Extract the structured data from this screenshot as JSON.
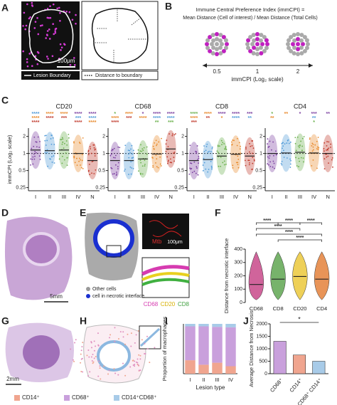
{
  "panel_labels": [
    "A",
    "B",
    "C",
    "D",
    "E",
    "F",
    "G",
    "H",
    "I",
    "J"
  ],
  "panel_a": {
    "scale_bar": "100μm",
    "legend": [
      "Lesion Boundary",
      "Distance to boundary"
    ]
  },
  "panel_b": {
    "formula_title": "Immune Central Preference Index (immCPI) =",
    "formula": "Mean Distance (Cell of interest) / Mean Distance (Total Cells)",
    "axis_ticks": [
      "0.5",
      "1",
      "2"
    ],
    "axis_label": "immCPI (Log₂ scale)"
  },
  "panel_d": {
    "scale_bar": "5mm"
  },
  "panel_e": {
    "legend": [
      "Other cells",
      "cell in necrotic interface"
    ],
    "inset_label": "Mtb",
    "scale_bar": "100μm",
    "channels": [
      "CD68",
      "CD20",
      "CD8"
    ]
  },
  "panel_g": {
    "scale_bar": "2mm"
  },
  "chart_data": [
    {
      "type": "dot_violin",
      "title": "CD20",
      "categories": [
        "I",
        "II",
        "III",
        "IV",
        "N"
      ],
      "values": [
        1.15,
        1.12,
        1.15,
        1.0,
        0.75
      ],
      "colors": [
        "#7b3fa0",
        "#4f9ad8",
        "#6ab04c",
        "#e8892b",
        "#c0392b"
      ],
      "ylim": [
        0.22,
        2.8
      ],
      "yticks": [
        0.25,
        0.5,
        1,
        2
      ],
      "log_scale": true,
      "reference_line": 1,
      "ylabel": "immCPI (Log₂ scale)",
      "stars": [
        [
          {
            "text": "****",
            "color": "#4f9ad8"
          },
          {
            "text": "****",
            "color": "#e8892b"
          },
          {
            "text": "****",
            "color": "#c0392b"
          }
        ],
        [
          {
            "text": "****",
            "color": "#e8892b"
          },
          {
            "text": "****",
            "color": "#c0392b"
          }
        ],
        [
          {
            "text": "****",
            "color": "#e8892b"
          },
          {
            "text": "***",
            "color": "#c0392b"
          }
        ],
        [
          {
            "text": "****",
            "color": "#7b3fa0"
          },
          {
            "text": "***",
            "color": "#4f9ad8"
          },
          {
            "text": "****",
            "color": "#c0392b"
          }
        ],
        [
          {
            "text": "****",
            "color": "#7b3fa0"
          },
          {
            "text": "****",
            "color": "#4f9ad8"
          },
          {
            "text": "****",
            "color": "#e8892b"
          }
        ]
      ]
    },
    {
      "type": "dot_violin",
      "title": "CD68",
      "categories": [
        "I",
        "II",
        "III",
        "IV",
        "N"
      ],
      "values": [
        0.75,
        0.75,
        0.8,
        0.98,
        1.2
      ],
      "colors": [
        "#7b3fa0",
        "#4f9ad8",
        "#6ab04c",
        "#e8892b",
        "#c0392b"
      ],
      "ylim": [
        0.22,
        2.8
      ],
      "yticks": [
        0.25,
        0.5,
        1,
        2
      ],
      "log_scale": true,
      "reference_line": 1,
      "stars": [
        [
          {
            "text": "*",
            "color": "#6ab04c"
          },
          {
            "text": "****",
            "color": "#e8892b"
          },
          {
            "text": "****",
            "color": "#c0392b"
          }
        ],
        [
          {
            "text": "****",
            "color": "#e8892b"
          },
          {
            "text": "***",
            "color": "#c0392b"
          }
        ],
        [
          {
            "text": "*",
            "color": "#7b3fa0"
          },
          {
            "text": "****",
            "color": "#e8892b"
          }
        ],
        [
          {
            "text": "****",
            "color": "#7b3fa0"
          },
          {
            "text": "****",
            "color": "#4f9ad8"
          },
          {
            "text": "**",
            "color": "#6ab04c"
          }
        ],
        [
          {
            "text": "****",
            "color": "#7b3fa0"
          },
          {
            "text": "****",
            "color": "#4f9ad8"
          },
          {
            "text": "***",
            "color": "#6ab04c"
          }
        ]
      ]
    },
    {
      "type": "dot_violin",
      "title": "CD8",
      "categories": [
        "I",
        "II",
        "III",
        "IV",
        "N"
      ],
      "values": [
        0.75,
        0.78,
        0.9,
        0.97,
        0.9
      ],
      "colors": [
        "#7b3fa0",
        "#4f9ad8",
        "#6ab04c",
        "#e8892b",
        "#c0392b"
      ],
      "ylim": [
        0.22,
        2.8
      ],
      "yticks": [
        0.25,
        0.5,
        1,
        2
      ],
      "log_scale": true,
      "reference_line": 1,
      "stars": [
        [
          {
            "text": "****",
            "color": "#6ab04c"
          },
          {
            "text": "****",
            "color": "#e8892b"
          },
          {
            "text": "***",
            "color": "#c0392b"
          }
        ],
        [
          {
            "text": "****",
            "color": "#e8892b"
          },
          {
            "text": "**",
            "color": "#c0392b"
          }
        ],
        [
          {
            "text": "****",
            "color": "#7b3fa0"
          },
          {
            "text": "*",
            "color": "#e8892b"
          }
        ],
        [
          {
            "text": "****",
            "color": "#7b3fa0"
          },
          {
            "text": "****",
            "color": "#4f9ad8"
          }
        ],
        [
          {
            "text": "***",
            "color": "#7b3fa0"
          },
          {
            "text": "**",
            "color": "#4f9ad8"
          }
        ]
      ]
    },
    {
      "type": "dot_violin",
      "title": "CD4",
      "categories": [
        "I",
        "II",
        "III",
        "IV",
        "N"
      ],
      "values": [
        1.0,
        1.02,
        1.05,
        1.02,
        1.0
      ],
      "colors": [
        "#7b3fa0",
        "#4f9ad8",
        "#6ab04c",
        "#e8892b",
        "#c0392b"
      ],
      "ylim": [
        0.22,
        2.8
      ],
      "yticks": [
        0.25,
        0.5,
        1,
        2
      ],
      "log_scale": true,
      "reference_line": 1,
      "stars": [
        [
          {
            "text": "*",
            "color": "#6ab04c"
          },
          {
            "text": "**",
            "color": "#e8892b"
          }
        ],
        [
          {
            "text": "**",
            "color": "#e8892b"
          }
        ],
        [
          {
            "text": "*",
            "color": "#7b3fa0"
          }
        ],
        [
          {
            "text": "***",
            "color": "#7b3fa0"
          },
          {
            "text": "**",
            "color": "#4f9ad8"
          },
          {
            "text": "*",
            "color": "#6ab04c"
          }
        ],
        [
          {
            "text": "**",
            "color": "#7b3fa0"
          }
        ]
      ]
    },
    {
      "type": "violin",
      "categories": [
        "CD68",
        "CD8",
        "CD20",
        "CD4"
      ],
      "values": [
        135,
        175,
        195,
        175
      ],
      "colors": [
        "#c0307a",
        "#4a9a3a",
        "#e8c020",
        "#e07020"
      ],
      "ylim": [
        0,
        400
      ],
      "yticks": [
        0,
        100,
        200,
        300,
        400
      ],
      "ylabel": "Distance from necrotic interface",
      "significance": [
        "****",
        "****",
        "****",
        "****",
        "****",
        "****"
      ]
    },
    {
      "type": "stacked_bar",
      "categories": [
        "I",
        "II",
        "III",
        "IV"
      ],
      "ylim": [
        0,
        1
      ],
      "ylabel": "Proportion of macrophages",
      "xlabel": "Lesion type",
      "series": [
        {
          "name": "CD14⁺",
          "color": "#f0a58f",
          "values": [
            0.27,
            0.18,
            0.22,
            0.15
          ]
        },
        {
          "name": "CD68⁺",
          "color": "#c9a0dc",
          "values": [
            0.68,
            0.77,
            0.72,
            0.78
          ]
        },
        {
          "name": "CD14⁺CD68⁺",
          "color": "#a8cbe8",
          "values": [
            0.05,
            0.05,
            0.06,
            0.07
          ]
        }
      ]
    },
    {
      "type": "bar",
      "categories": [
        "CD68⁺",
        "CD14⁺",
        "CD68⁺ CD14⁺"
      ],
      "values": [
        1300,
        750,
        500
      ],
      "colors": [
        "#c9a0dc",
        "#f0a58f",
        "#a8cbe8"
      ],
      "ylim": [
        0,
        2000
      ],
      "yticks": [
        0,
        500,
        1000,
        1500,
        2000
      ],
      "ylabel": "Average Distance from Necrosis",
      "significance": "*"
    }
  ]
}
